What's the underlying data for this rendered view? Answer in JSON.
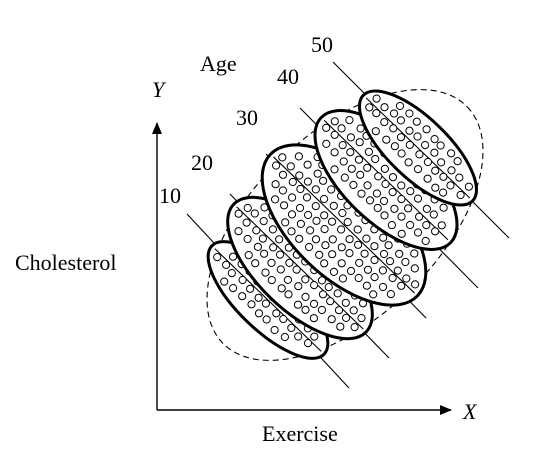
{
  "labels": {
    "y_axis_letter": "Y",
    "x_axis_letter": "X",
    "y_axis_label": "Cholesterol",
    "x_axis_label": "Exercise",
    "age_title": "Age"
  },
  "age_groups": [
    "10",
    "20",
    "30",
    "40",
    "50"
  ],
  "colors": {
    "ink": "#000000",
    "background": "#ffffff"
  }
}
